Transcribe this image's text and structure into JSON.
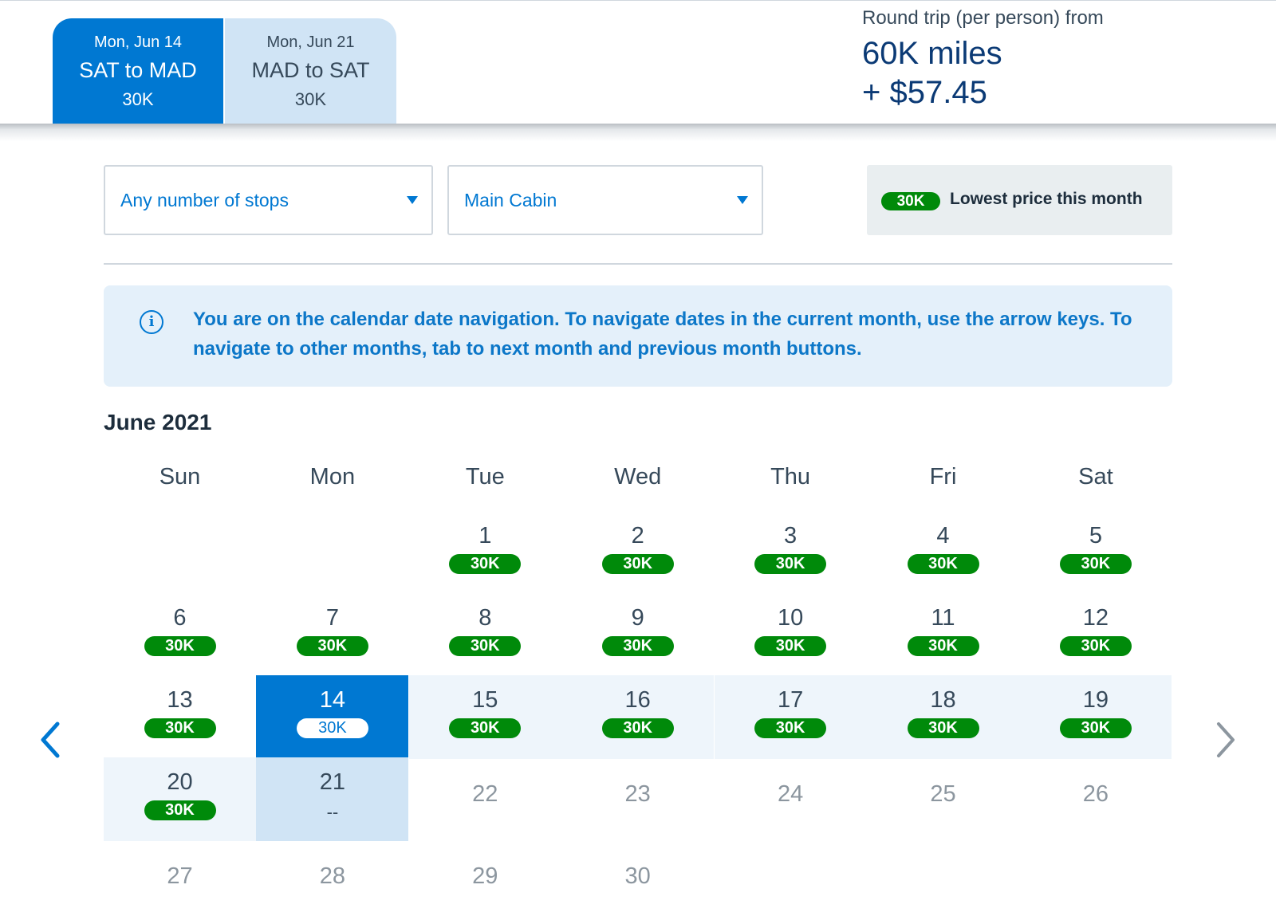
{
  "tabs": [
    {
      "date": "Mon, Jun 14",
      "route": "SAT to MAD",
      "price": "30K"
    },
    {
      "date": "Mon, Jun 21",
      "route": "MAD to SAT",
      "price": "30K"
    }
  ],
  "summary": {
    "label": "Round trip (per person) from",
    "miles": "60K miles",
    "cash": "+ $57.45"
  },
  "filters": {
    "stops": "Any number of stops",
    "cabin": "Main Cabin"
  },
  "legend": {
    "price": "30K",
    "text": "Lowest price this month"
  },
  "info": {
    "text": "You are on the calendar date navigation. To navigate dates in the current month, use the arrow keys. To navigate to other months, tab to next month and previous month buttons."
  },
  "calendar": {
    "month": "June 2021",
    "weekdays": [
      "Sun",
      "Mon",
      "Tue",
      "Wed",
      "Thu",
      "Fri",
      "Sat"
    ],
    "days": [
      {
        "day": "1",
        "price": "30K"
      },
      {
        "day": "2",
        "price": "30K"
      },
      {
        "day": "3",
        "price": "30K"
      },
      {
        "day": "4",
        "price": "30K"
      },
      {
        "day": "5",
        "price": "30K"
      },
      {
        "day": "6",
        "price": "30K"
      },
      {
        "day": "7",
        "price": "30K"
      },
      {
        "day": "8",
        "price": "30K"
      },
      {
        "day": "9",
        "price": "30K"
      },
      {
        "day": "10",
        "price": "30K"
      },
      {
        "day": "11",
        "price": "30K"
      },
      {
        "day": "12",
        "price": "30K"
      },
      {
        "day": "13",
        "price": "30K"
      },
      {
        "day": "14",
        "price": "30K",
        "state": "selected-departure"
      },
      {
        "day": "15",
        "price": "30K",
        "state": "in-range"
      },
      {
        "day": "16",
        "price": "30K",
        "state": "in-range"
      },
      {
        "day": "17",
        "price": "30K",
        "state": "in-range"
      },
      {
        "day": "18",
        "price": "30K",
        "state": "in-range"
      },
      {
        "day": "19",
        "price": "30K",
        "state": "in-range"
      },
      {
        "day": "20",
        "price": "30K",
        "state": "in-range"
      },
      {
        "day": "21",
        "price": "--",
        "state": "selected-return"
      },
      {
        "day": "22",
        "price": null,
        "state": "unavailable"
      },
      {
        "day": "23",
        "price": null,
        "state": "unavailable"
      },
      {
        "day": "24",
        "price": null,
        "state": "unavailable"
      },
      {
        "day": "25",
        "price": null,
        "state": "unavailable"
      },
      {
        "day": "26",
        "price": null,
        "state": "unavailable"
      },
      {
        "day": "27",
        "price": null,
        "state": "unavailable"
      },
      {
        "day": "28",
        "price": null,
        "state": "unavailable"
      },
      {
        "day": "29",
        "price": null,
        "state": "unavailable"
      },
      {
        "day": "30",
        "price": null,
        "state": "unavailable"
      }
    ]
  },
  "navigation": {
    "prev_icon": "chevron-left-icon",
    "next_icon": "chevron-right-icon"
  },
  "colors": {
    "primary": "#0078d2",
    "price_green": "#008a0a",
    "range_fill": "#eef5fb",
    "return_fill": "#d0e4f5",
    "info_bg": "#e4f0fa"
  }
}
